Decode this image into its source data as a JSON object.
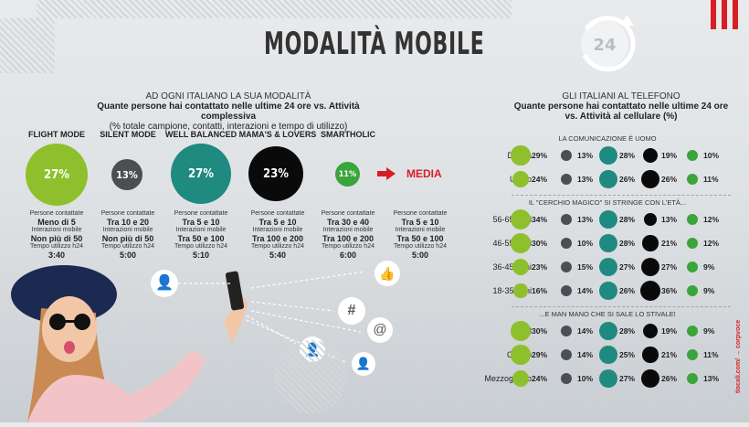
{
  "title": "MODALITÀ MOBILE",
  "left": {
    "header": "AD OGNI ITALIANO LA SUA MODALITÀ",
    "question": "Quante persone hai contattato nelle ultime 24 ore vs. Attività complessiva",
    "note": "(% totale campione, contatti, interazioni e tempo di utilizzo)",
    "stat_labels": {
      "contacts": "Persone contattate",
      "interactions": "Interazioni mobile",
      "time": "Tempo utilizzo h24"
    },
    "modes": [
      {
        "name": "FLIGHT MODE",
        "pct": "27%",
        "contacts": "Meno di 5",
        "interactions": "Non più di 50",
        "time": "3:40",
        "color": "#8ec02d"
      },
      {
        "name": "SILENT MODE",
        "pct": "13%",
        "contacts": "Tra 10 e 20",
        "interactions": "Non più di 50",
        "time": "5:00",
        "color": "#4a4f53"
      },
      {
        "name": "WELL BALANCED",
        "pct": "27%",
        "contacts": "Tra 5 e 10",
        "interactions": "Tra 50 e 100",
        "time": "5:10",
        "color": "#1f8a80"
      },
      {
        "name": "MAMA'S & LOVERS",
        "pct": "23%",
        "contacts": "Tra 5 e 10",
        "interactions": "Tra 100 e 200",
        "time": "5:40",
        "color": "#0a0a0a"
      },
      {
        "name": "SMARTHOLIC",
        "pct": "11%",
        "contacts": "Tra 30 e 40",
        "interactions": "Tra 100 e 200",
        "time": "6:00",
        "color": "#3aa53a"
      }
    ],
    "media": {
      "label": "MEDIA",
      "contacts": "Tra 5 e 10",
      "interactions": "Tra 50 e 100",
      "time": "5:00"
    }
  },
  "right": {
    "header": "GLI ITALIANI AL TELEFONO",
    "question": "Quante persone hai contattato nelle ultime 24 ore vs. Attività al cellulare (%)",
    "groups": [
      {
        "title": "LA COMUNICAZIONE È UOMO",
        "rows": [
          {
            "label": "Donna",
            "values": [
              "29%",
              "13%",
              "28%",
              "19%",
              "10%"
            ]
          },
          {
            "label": "Uomo",
            "values": [
              "24%",
              "13%",
              "26%",
              "26%",
              "11%"
            ]
          }
        ]
      },
      {
        "title": "IL \"CERCHIO MAGICO\" SI STRINGE CON L'ETÀ...",
        "rows": [
          {
            "label": "56-65 anni",
            "values": [
              "34%",
              "13%",
              "28%",
              "13%",
              "12%"
            ]
          },
          {
            "label": "46-55 anni",
            "values": [
              "30%",
              "10%",
              "28%",
              "21%",
              "12%"
            ]
          },
          {
            "label": "36-45 anni",
            "values": [
              "23%",
              "15%",
              "27%",
              "27%",
              "9%"
            ]
          },
          {
            "label": "18-35 anni",
            "values": [
              "16%",
              "14%",
              "26%",
              "36%",
              "9%"
            ]
          }
        ]
      },
      {
        "title": "...E MAN MANO CHE SI SALE LO STIVALE!",
        "rows": [
          {
            "label": "Nord",
            "values": [
              "30%",
              "14%",
              "28%",
              "19%",
              "9%"
            ]
          },
          {
            "label": "Centro",
            "values": [
              "29%",
              "14%",
              "25%",
              "21%",
              "11%"
            ]
          },
          {
            "label": "Mezzogiorno",
            "values": [
              "24%",
              "10%",
              "27%",
              "26%",
              "13%"
            ]
          }
        ]
      }
    ]
  },
  "badge": "24",
  "credit": "tiscali.com/ → corpvoce"
}
